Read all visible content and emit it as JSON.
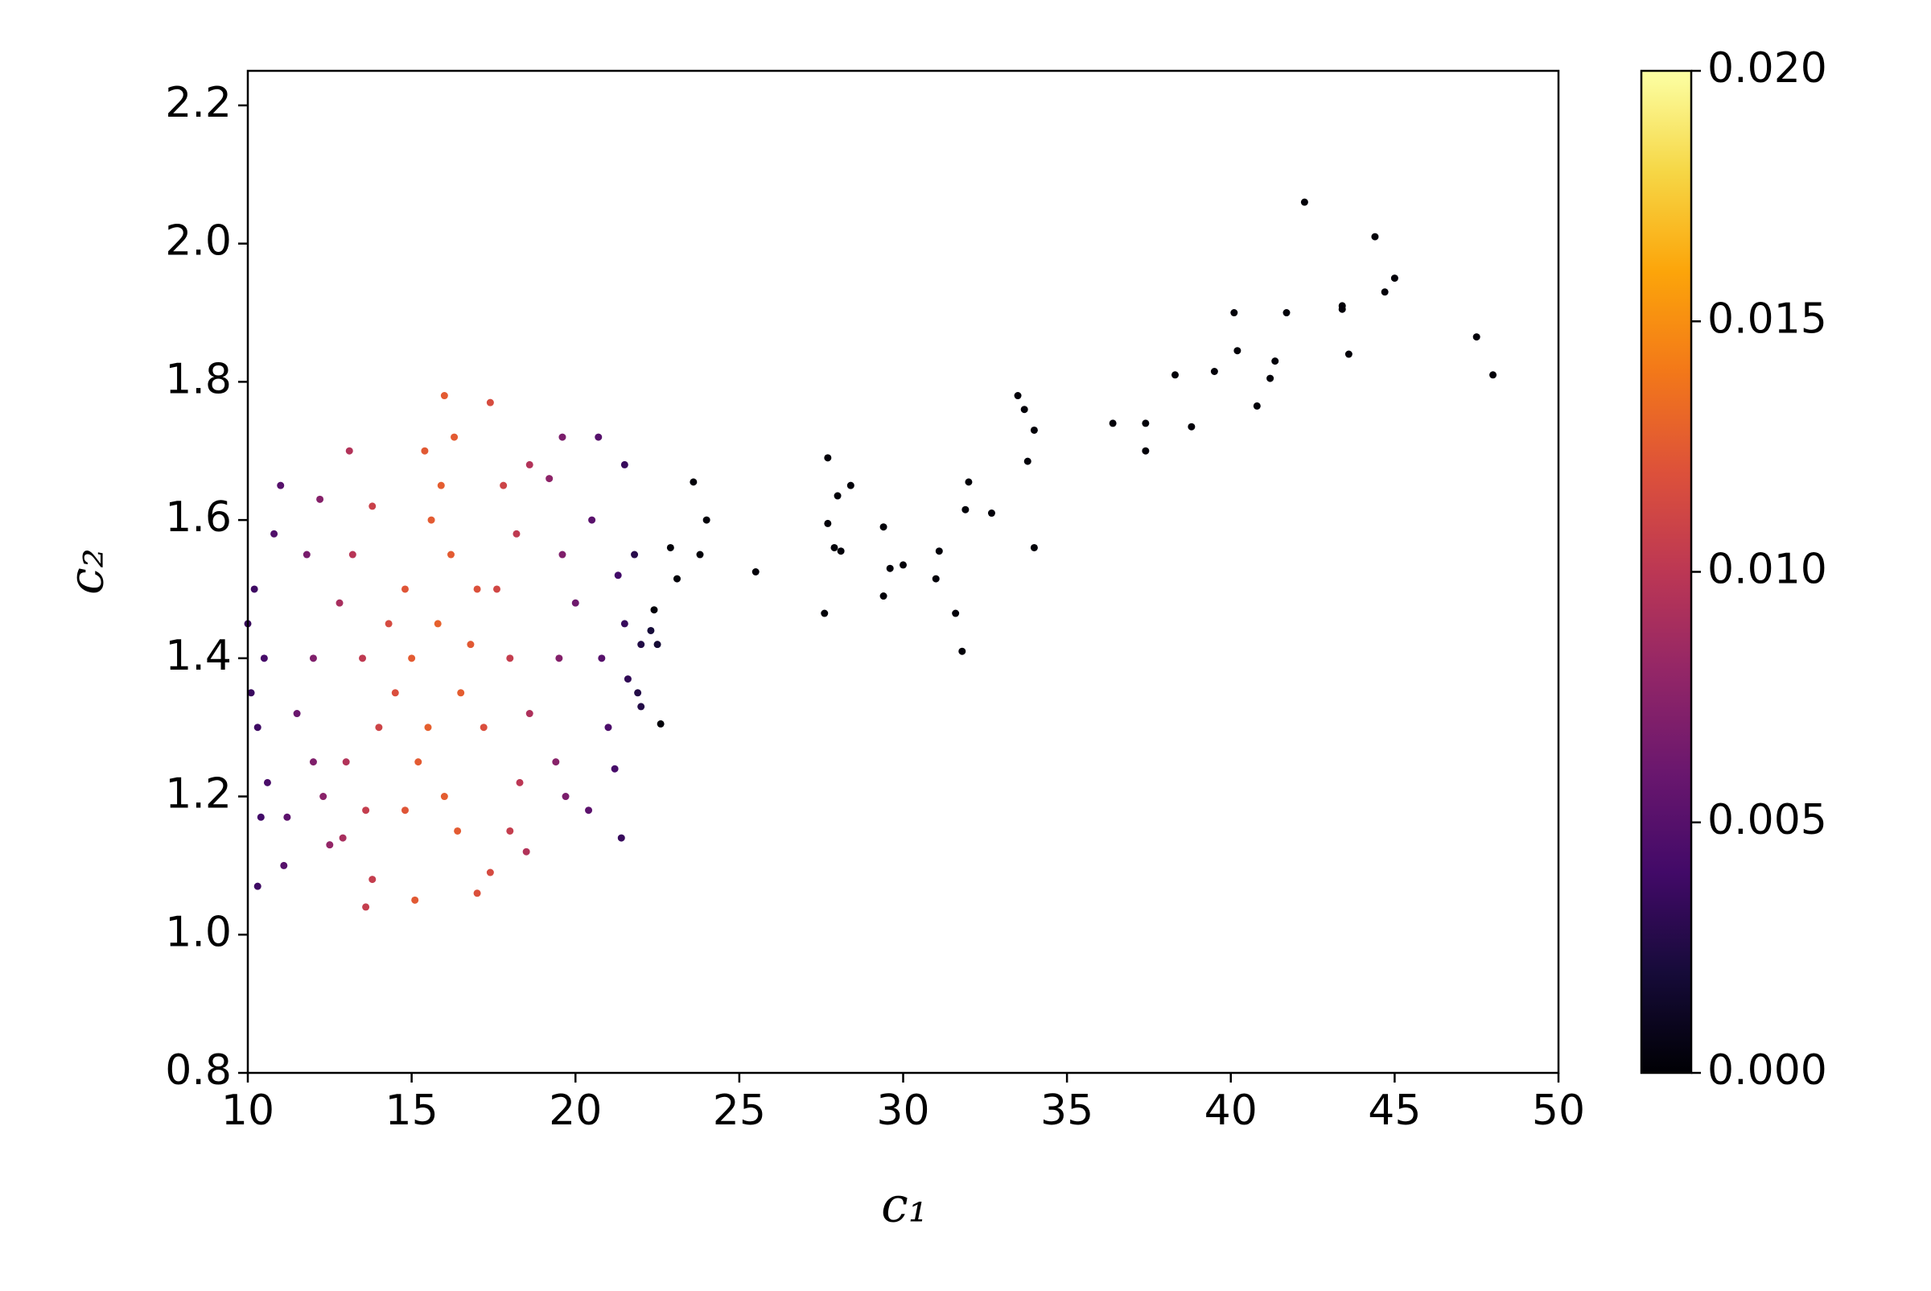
{
  "chart_data": {
    "type": "scatter",
    "x_label": "c₁",
    "y_label": "c₂",
    "xlim": [
      10,
      50
    ],
    "ylim": [
      0.8,
      2.25
    ],
    "xticks": [
      10,
      15,
      20,
      25,
      30,
      35,
      40,
      45,
      50
    ],
    "yticks": [
      0.8,
      {
        "value": 1.0,
        "label": "1.0"
      },
      1.2,
      1.4,
      1.6,
      1.8,
      {
        "value": 2.0,
        "label": "2.0"
      },
      2.2
    ],
    "colormap": "inferno",
    "clim": [
      0,
      0.02
    ],
    "cticks": [
      {
        "value": 0,
        "label": "0.000"
      },
      0.005,
      {
        "value": 0.01,
        "label": "0.010"
      },
      0.015,
      {
        "value": 0.02,
        "label": "0.020"
      }
    ],
    "x": [
      42.25,
      44.4,
      45.0,
      44.7,
      43.4,
      43.4,
      40.1,
      41.7,
      47.5,
      48.0,
      40.2,
      41.35,
      43.6,
      38.3,
      39.5,
      41.2,
      40.8,
      33.5,
      33.7,
      34.0,
      36.4,
      37.4,
      38.8,
      37.4,
      33.8,
      27.7,
      28.4,
      28.0,
      32.0,
      23.6,
      31.9,
      32.7,
      24.0,
      27.7,
      29.4,
      27.9,
      28.1,
      34.0,
      31.1,
      23.8,
      30.0,
      29.6,
      25.5,
      31.0,
      23.1,
      29.4,
      27.6,
      31.6,
      31.8,
      22.6,
      22.9,
      22.4,
      10.5,
      10.2,
      10.3,
      10.8,
      10.6,
      11.0,
      11.2,
      10.4,
      10.3,
      11.1,
      20.8,
      21.0,
      21.3,
      21.2,
      21.5,
      21.6,
      21.5,
      21.4,
      22.0,
      22.3,
      21.9,
      22.0,
      20.5,
      20.4,
      21.8,
      22.5,
      10.1,
      10.0,
      12.0,
      19.5,
      11.8,
      19.6,
      12.0,
      19.4,
      12.2,
      19.2,
      12.3,
      19.7,
      11.5,
      20.0,
      12.5,
      19.6,
      20.7,
      13.5,
      18.0,
      13.2,
      18.2,
      13.0,
      18.3,
      13.8,
      17.8,
      13.6,
      18.0,
      13.1,
      18.6,
      12.8,
      18.6,
      14.0,
      17.6,
      12.9,
      18.5,
      13.8,
      15.0,
      15.8,
      16.5,
      15.5,
      16.2,
      14.8,
      16.8,
      15.2,
      16.0,
      15.6,
      14.5,
      17.2,
      17.0,
      14.3,
      15.9,
      16.4,
      15.4,
      16.3,
      14.8,
      17.4,
      16.0,
      15.1,
      17.0,
      13.6,
      17.4
    ],
    "y": [
      2.06,
      2.01,
      1.95,
      1.93,
      1.91,
      1.905,
      1.9,
      1.9,
      1.865,
      1.81,
      1.845,
      1.83,
      1.84,
      1.81,
      1.815,
      1.805,
      1.765,
      1.78,
      1.76,
      1.73,
      1.74,
      1.74,
      1.735,
      1.7,
      1.685,
      1.69,
      1.65,
      1.635,
      1.655,
      1.655,
      1.615,
      1.61,
      1.6,
      1.595,
      1.59,
      1.56,
      1.555,
      1.56,
      1.555,
      1.55,
      1.535,
      1.53,
      1.525,
      1.515,
      1.515,
      1.49,
      1.465,
      1.465,
      1.41,
      1.305,
      1.56,
      1.47,
      1.4,
      1.5,
      1.3,
      1.58,
      1.22,
      1.65,
      1.17,
      1.17,
      1.07,
      1.1,
      1.4,
      1.3,
      1.52,
      1.24,
      1.45,
      1.37,
      1.68,
      1.14,
      1.42,
      1.44,
      1.35,
      1.33,
      1.6,
      1.18,
      1.55,
      1.42,
      1.35,
      1.45,
      1.4,
      1.4,
      1.55,
      1.55,
      1.25,
      1.25,
      1.63,
      1.66,
      1.2,
      1.2,
      1.32,
      1.48,
      1.13,
      1.72,
      1.72,
      1.4,
      1.4,
      1.55,
      1.58,
      1.25,
      1.22,
      1.62,
      1.65,
      1.18,
      1.15,
      1.7,
      1.68,
      1.48,
      1.32,
      1.3,
      1.5,
      1.14,
      1.12,
      1.08,
      1.4,
      1.45,
      1.35,
      1.3,
      1.55,
      1.5,
      1.42,
      1.25,
      1.2,
      1.6,
      1.35,
      1.3,
      1.5,
      1.45,
      1.65,
      1.15,
      1.7,
      1.72,
      1.18,
      1.77,
      1.78,
      1.05,
      1.06,
      1.04,
      1.09
    ],
    "c": [
      0.0002,
      0.0002,
      0.0002,
      0.0002,
      0.0002,
      0.0002,
      0.0002,
      0.0002,
      0.0002,
      0.0002,
      0.0002,
      0.0002,
      0.0002,
      0.0002,
      0.0002,
      0.0002,
      0.0002,
      0.0002,
      0.0002,
      0.0002,
      0.0002,
      0.0002,
      0.0002,
      0.0002,
      0.0002,
      0.0002,
      0.0002,
      0.0002,
      0.0002,
      0.0002,
      0.0002,
      0.0002,
      0.0002,
      0.0002,
      0.0002,
      0.0002,
      0.0002,
      0.0002,
      0.0002,
      0.0002,
      0.0002,
      0.0002,
      0.0002,
      0.0002,
      0.0002,
      0.0002,
      0.0002,
      0.0002,
      0.0002,
      0.0002,
      0.0002,
      0.0002,
      0.0042,
      0.0038,
      0.0038,
      0.0047,
      0.0044,
      0.005,
      0.0053,
      0.004,
      0.0038,
      0.005,
      0.005,
      0.0045,
      0.004,
      0.0042,
      0.0035,
      0.0032,
      0.0035,
      0.0035,
      0.0025,
      0.002,
      0.0026,
      0.0026,
      0.0052,
      0.0053,
      0.0028,
      0.0018,
      0.0036,
      0.0035,
      0.007,
      0.0072,
      0.0067,
      0.007,
      0.007,
      0.0074,
      0.0073,
      0.0077,
      0.0075,
      0.0068,
      0.006,
      0.0062,
      0.008,
      0.0068,
      0.005,
      0.0102,
      0.0105,
      0.0098,
      0.0102,
      0.0095,
      0.01,
      0.0108,
      0.011,
      0.0105,
      0.0105,
      0.0095,
      0.0095,
      0.009,
      0.0093,
      0.011,
      0.0112,
      0.009,
      0.0095,
      0.0105,
      0.0125,
      0.0128,
      0.0126,
      0.0127,
      0.0125,
      0.0122,
      0.0124,
      0.0125,
      0.0126,
      0.0125,
      0.0118,
      0.0118,
      0.0119,
      0.0115,
      0.0126,
      0.0125,
      0.0124,
      0.0125,
      0.0122,
      0.0116,
      0.0125,
      0.0124,
      0.0119,
      0.0105,
      0.0115
    ]
  }
}
